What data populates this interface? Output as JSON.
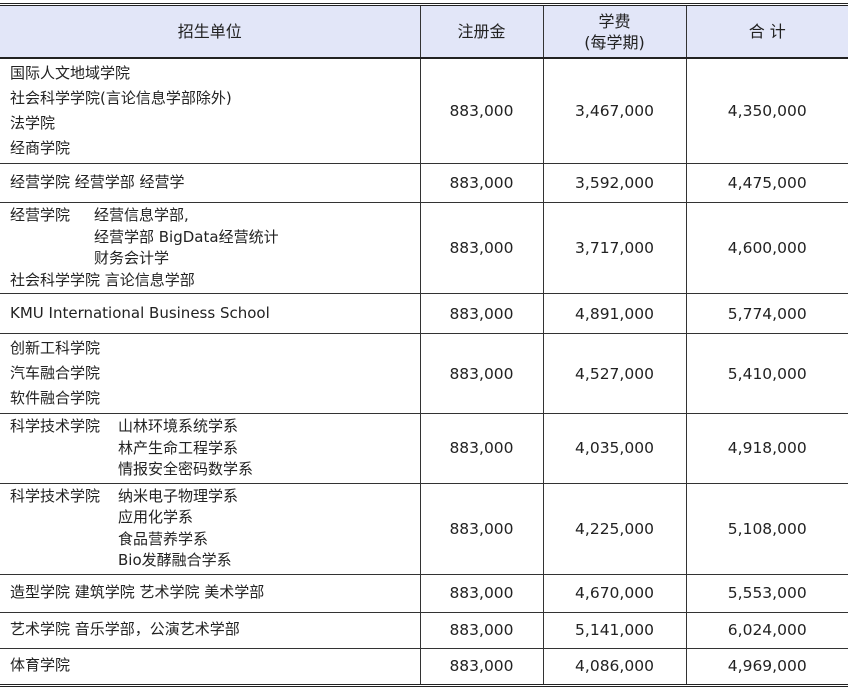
{
  "headers": {
    "unit": "招生单位",
    "registration": "注册金",
    "tuition": "学费",
    "tuition_sub": "(每学期)",
    "total": "合 计"
  },
  "rows": [
    {
      "lines": [
        {
          "lead": "国际人文地域学院"
        },
        {
          "lead": "社会科学学院(言论信息学部除外)"
        },
        {
          "lead": "法学院"
        },
        {
          "lead": "经商学院"
        }
      ],
      "registration": "883,000",
      "tuition": "3,467,000",
      "total": "4,350,000"
    },
    {
      "lines": [
        {
          "lead": "经营学院 经营学部 经营学"
        }
      ],
      "registration": "883,000",
      "tuition": "3,592,000",
      "total": "4,475,000"
    },
    {
      "lines": [
        {
          "lead": "经营学院",
          "sub": "经营信息学部,"
        },
        {
          "lead": "",
          "sub": "经营学部 BigData经营统计"
        },
        {
          "lead": "",
          "sub": "财务会计学"
        },
        {
          "lead": "社会科学学院 言论信息学部"
        }
      ],
      "registration": "883,000",
      "tuition": "3,717,000",
      "total": "4,600,000"
    },
    {
      "lines": [
        {
          "lead": "KMU International Business School"
        }
      ],
      "registration": "883,000",
      "tuition": "4,891,000",
      "total": "5,774,000"
    },
    {
      "lines": [
        {
          "lead": "创新工科学院"
        },
        {
          "lead": "汽车融合学院"
        },
        {
          "lead": "软件融合学院"
        }
      ],
      "registration": "883,000",
      "tuition": "4,527,000",
      "total": "5,410,000"
    },
    {
      "lines": [
        {
          "lead": "科学技术学院",
          "sub": "山林环境系统学系"
        },
        {
          "lead": "",
          "sub": "林产生命工程学系"
        },
        {
          "lead": "",
          "sub": "情报安全密码数学系"
        }
      ],
      "registration": "883,000",
      "tuition": "4,035,000",
      "total": "4,918,000"
    },
    {
      "lines": [
        {
          "lead": "科学技术学院",
          "sub": "纳米电子物理学系"
        },
        {
          "lead": "",
          "sub": "应用化学系"
        },
        {
          "lead": "",
          "sub": "食品营养学系"
        },
        {
          "lead": "",
          "sub": "Bio发酵融合学系"
        }
      ],
      "registration": "883,000",
      "tuition": "4,225,000",
      "total": "5,108,000"
    },
    {
      "lines": [
        {
          "lead": "造型学院 建筑学院 艺术学院 美术学部"
        }
      ],
      "registration": "883,000",
      "tuition": "4,670,000",
      "total": "5,553,000"
    },
    {
      "lines": [
        {
          "lead": "艺术学院 音乐学部，公演艺术学部"
        }
      ],
      "registration": "883,000",
      "tuition": "5,141,000",
      "total": "6,024,000"
    },
    {
      "lines": [
        {
          "lead": "体育学院"
        }
      ],
      "registration": "883,000",
      "tuition": "4,086,000",
      "total": "4,969,000"
    }
  ]
}
